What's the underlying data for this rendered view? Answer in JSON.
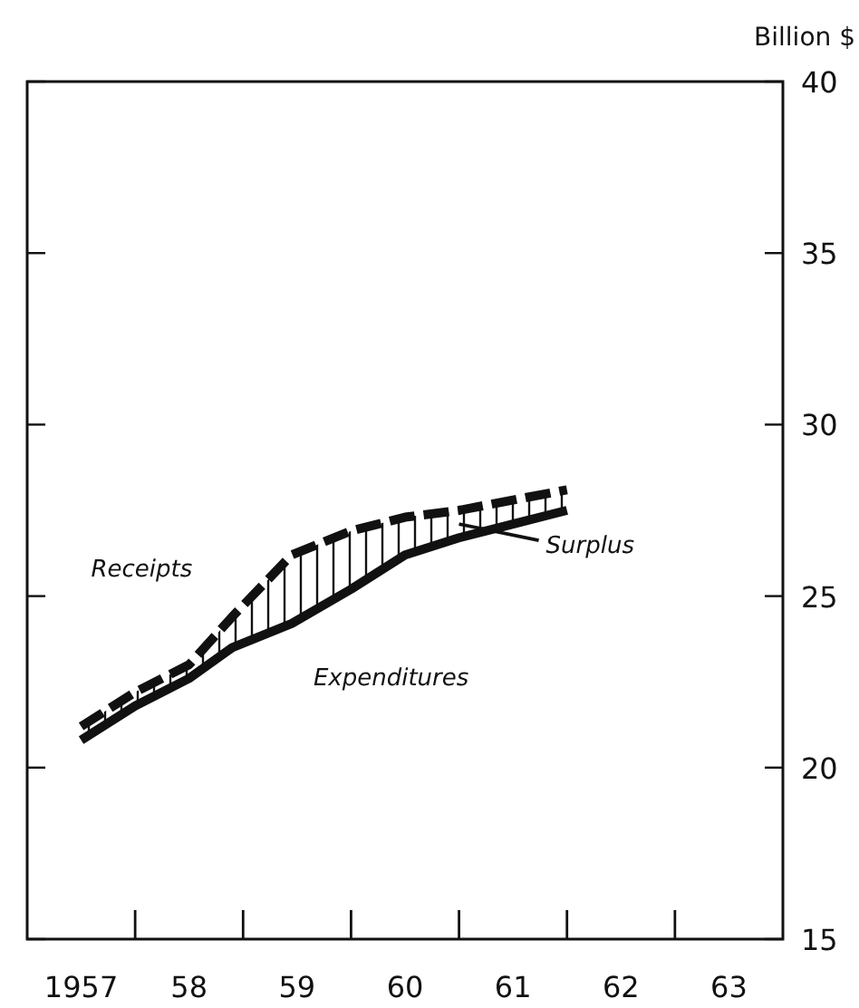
{
  "chart_data": {
    "type": "line",
    "ylabel": "Billion $",
    "x": [
      1957.0,
      1957.5,
      1958.0,
      1958.4,
      1958.95,
      1959.5,
      1960.0,
      1960.5,
      1961.0,
      1961.5
    ],
    "series": [
      {
        "name": "Receipts",
        "line_style": "dashed",
        "color": "#111111",
        "values": [
          21.2,
          22.2,
          23.0,
          24.4,
          26.2,
          26.9,
          27.3,
          27.5,
          27.8,
          28.1
        ],
        "lower": [
          20.8,
          21.8,
          22.6,
          23.5,
          24.2,
          25.2,
          26.2,
          26.7,
          27.1,
          27.5
        ],
        "upper": [
          21.2,
          22.2,
          23.0,
          24.4,
          26.2,
          26.9,
          27.3,
          27.5,
          27.8,
          28.1
        ]
      },
      {
        "name": "Expenditures",
        "line_style": "solid",
        "color": "#111111",
        "values": [
          20.8,
          21.8,
          22.6,
          23.5,
          24.2,
          25.2,
          26.2,
          26.7,
          27.1,
          27.5
        ]
      }
    ],
    "annotations": [
      {
        "text": "Surplus",
        "x": 1960.5,
        "y": 27.1
      }
    ],
    "xlim": [
      1956.5,
      1963.5
    ],
    "xticks": [
      1957,
      {
        "value": 1958,
        "label": "58"
      },
      {
        "value": 1959,
        "label": "59"
      },
      {
        "value": 1960,
        "label": "60"
      },
      {
        "value": 1961,
        "label": "61"
      },
      {
        "value": 1962,
        "label": "62"
      },
      {
        "value": 1963,
        "label": "63"
      },
      {
        "value": 1957.5,
        "label": null
      },
      {
        "value": 1958.5,
        "label": null
      },
      {
        "value": 1959.5,
        "label": null
      },
      {
        "value": 1960.5,
        "label": null
      },
      {
        "value": 1961.5,
        "label": null
      },
      {
        "value": 1962.5,
        "label": null
      }
    ],
    "ylim": [
      15,
      40
    ],
    "yticks": [
      15,
      20,
      25,
      30,
      35,
      40
    ],
    "grid": false,
    "marker": "none"
  }
}
